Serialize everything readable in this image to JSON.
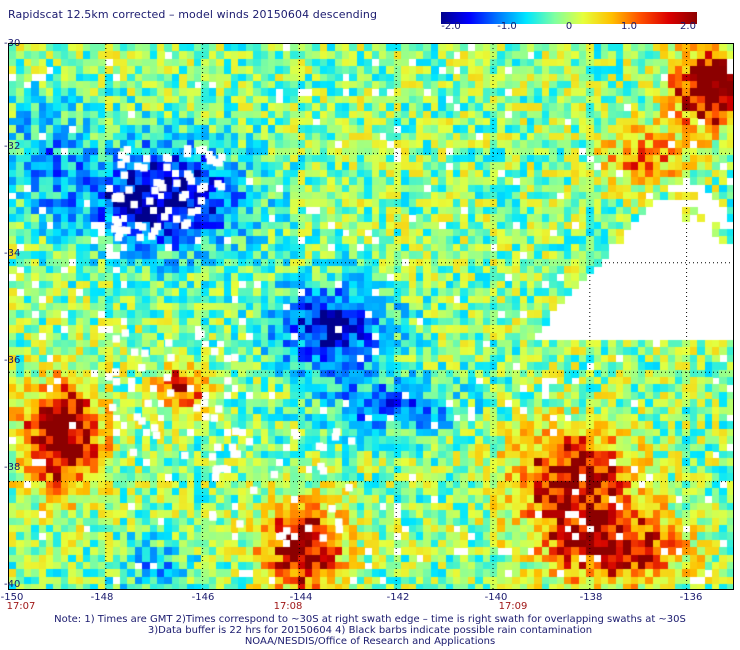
{
  "title": "Rapidscat 12.5km corrected – model winds 20150604 descending",
  "colorbar": {
    "ticks": [
      "-2.0",
      "-1.0",
      "0",
      "1.0",
      "2.0"
    ],
    "colors": [
      "#00008c",
      "#0000ff",
      "#0078ff",
      "#00e6ff",
      "#7fffa0",
      "#e6ff3c",
      "#ffc000",
      "#ff5000",
      "#dc0000",
      "#8c0000"
    ]
  },
  "map": {
    "lon_range": [
      -150,
      -135
    ],
    "lat_range": [
      -30,
      -40
    ],
    "lat_labels": [
      "-30",
      "-32",
      "-34",
      "-36",
      "-38",
      "-40"
    ],
    "lon_labels": [
      "-150",
      "-148",
      "-146",
      "-144",
      "-142",
      "-140",
      "-138",
      "-136"
    ],
    "grid_lines_lon": [
      -148,
      -146,
      -144,
      -142,
      -140,
      -138,
      -136
    ],
    "grid_lines_lat": [
      -32,
      -34,
      -36,
      -38
    ],
    "grid_style": "dotted"
  },
  "times": [
    {
      "label": "17:07",
      "lon": -150
    },
    {
      "label": "17:08",
      "lon": -144.4
    },
    {
      "label": "17:09",
      "lon": -139.5
    }
  ],
  "notes": {
    "line1": "Note: 1) Times are GMT 2)Times correspond to ~30S at right swath edge – time is right swath for overlapping swaths at ~30S",
    "line2": "3)Data buffer is 22 hrs for 20150604 4) Black barbs indicate possible rain contamination",
    "line3": "NOAA/NESDIS/Office of Research and Applications"
  }
}
